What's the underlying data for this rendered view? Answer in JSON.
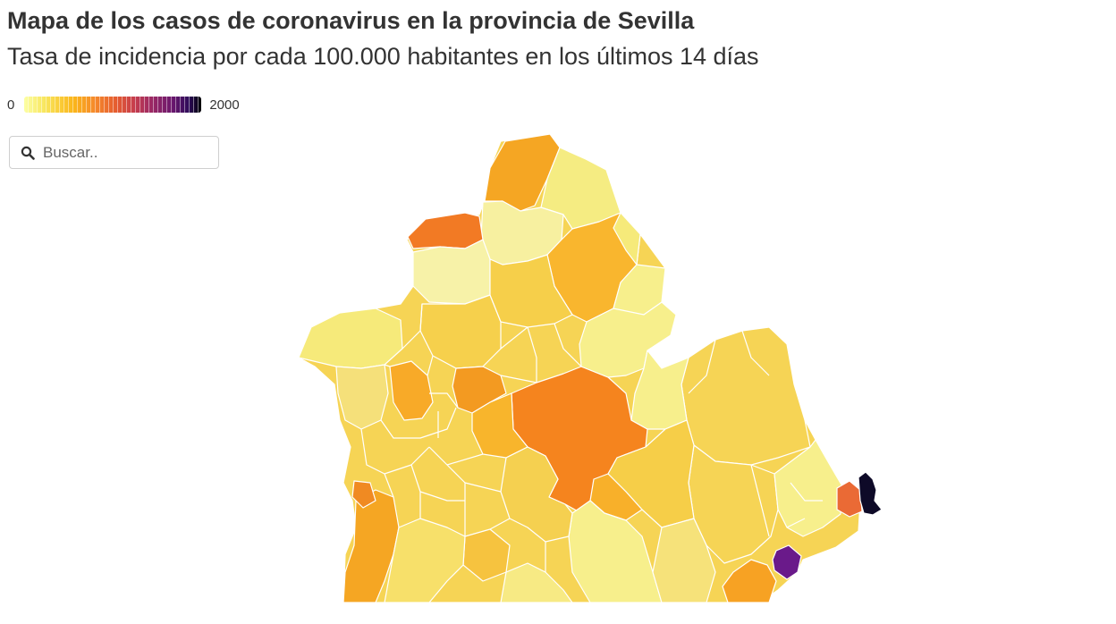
{
  "header": {
    "title": "Mapa de los casos de coronavirus en la provincia de Sevilla",
    "subtitle": "Tasa de incidencia por cada 100.000 habitantes en los últimos 14 días"
  },
  "legend": {
    "min_label": "0",
    "max_label": "2000",
    "scale": "inferno-reversed"
  },
  "search": {
    "placeholder": "Buscar..",
    "value": ""
  },
  "map": {
    "subject": "municipios de la provincia de Sevilla",
    "colors": {
      "very_low": "#f7ef8c",
      "low": "#f5d85a",
      "medium_low": "#f6c640",
      "medium": "#fbb62a",
      "high": "#f5891e",
      "very_high": "#f27a24",
      "orange_red": "#ea6a35",
      "purple": "#6a1a8a",
      "darkest": "#0e0a28"
    }
  }
}
